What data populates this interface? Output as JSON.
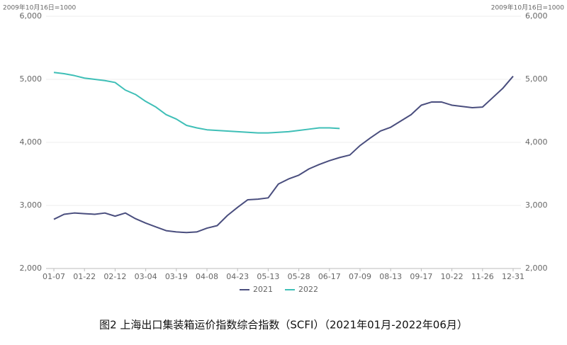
{
  "chart_data": {
    "type": "line",
    "y_note": "2009年10月16日=1000",
    "y2_note": "2009年10月16日=1000",
    "caption": "图2 上海出口集装箱运价指数综合指数（SCFI）（2021年01月-2022年06月）",
    "categories": [
      "01-07",
      null,
      null,
      "01-22",
      null,
      null,
      "02-12",
      null,
      null,
      "03-04",
      null,
      null,
      "03-19",
      null,
      null,
      "04-08",
      null,
      null,
      "04-23",
      null,
      null,
      "05-13",
      null,
      null,
      "05-28",
      null,
      null,
      "06-17",
      null,
      null,
      "07-09",
      null,
      null,
      "08-13",
      null,
      null,
      "09-17",
      null,
      null,
      "10-22",
      null,
      null,
      "11-26",
      null,
      null,
      "12-31"
    ],
    "series": [
      {
        "name": "2021",
        "color": "#4a4e7e",
        "values": [
          2780,
          2860,
          2880,
          2870,
          2860,
          2880,
          2830,
          2880,
          2790,
          2720,
          2660,
          2600,
          2580,
          2570,
          2580,
          2640,
          2680,
          2840,
          2970,
          3090,
          3100,
          3120,
          3340,
          3420,
          3480,
          3580,
          3650,
          3710,
          3760,
          3800,
          3950,
          4070,
          4180,
          4240,
          4340,
          4440,
          4590,
          4640,
          4640,
          4590,
          4570,
          4550,
          4560,
          4710,
          4860,
          5050
        ]
      },
      {
        "name": "2022",
        "color": "#3fbfb7",
        "values": [
          5110,
          5090,
          5060,
          5020,
          5000,
          4980,
          4950,
          4830,
          4760,
          4650,
          4560,
          4440,
          4370,
          4270,
          4230,
          4200,
          4190,
          4180,
          4170,
          4160,
          4150,
          4150,
          4160,
          4170,
          4190,
          4210,
          4230,
          4230,
          4220,
          null,
          null,
          null,
          null,
          null,
          null,
          null,
          null,
          null,
          null,
          null,
          null,
          null,
          null,
          null,
          null,
          null
        ]
      }
    ],
    "ylim": [
      2000,
      6000
    ],
    "yticks": [
      {
        "value": 2000,
        "label": "2,000"
      },
      {
        "value": 3000,
        "label": "3,000"
      },
      {
        "value": 4000,
        "label": "4,000"
      },
      {
        "value": 5000,
        "label": "5,000"
      },
      {
        "value": 6000,
        "label": "6,000"
      }
    ],
    "y2lim": [
      2000,
      6000
    ],
    "y2ticks": [
      {
        "value": 2000,
        "label": "2,000"
      },
      {
        "value": 3000,
        "label": "3,000"
      },
      {
        "value": 4000,
        "label": "4,000"
      },
      {
        "value": 5000,
        "label": "5,000"
      },
      {
        "value": 6000,
        "label": "6,000"
      }
    ],
    "grid": true,
    "legend": "bottom"
  }
}
